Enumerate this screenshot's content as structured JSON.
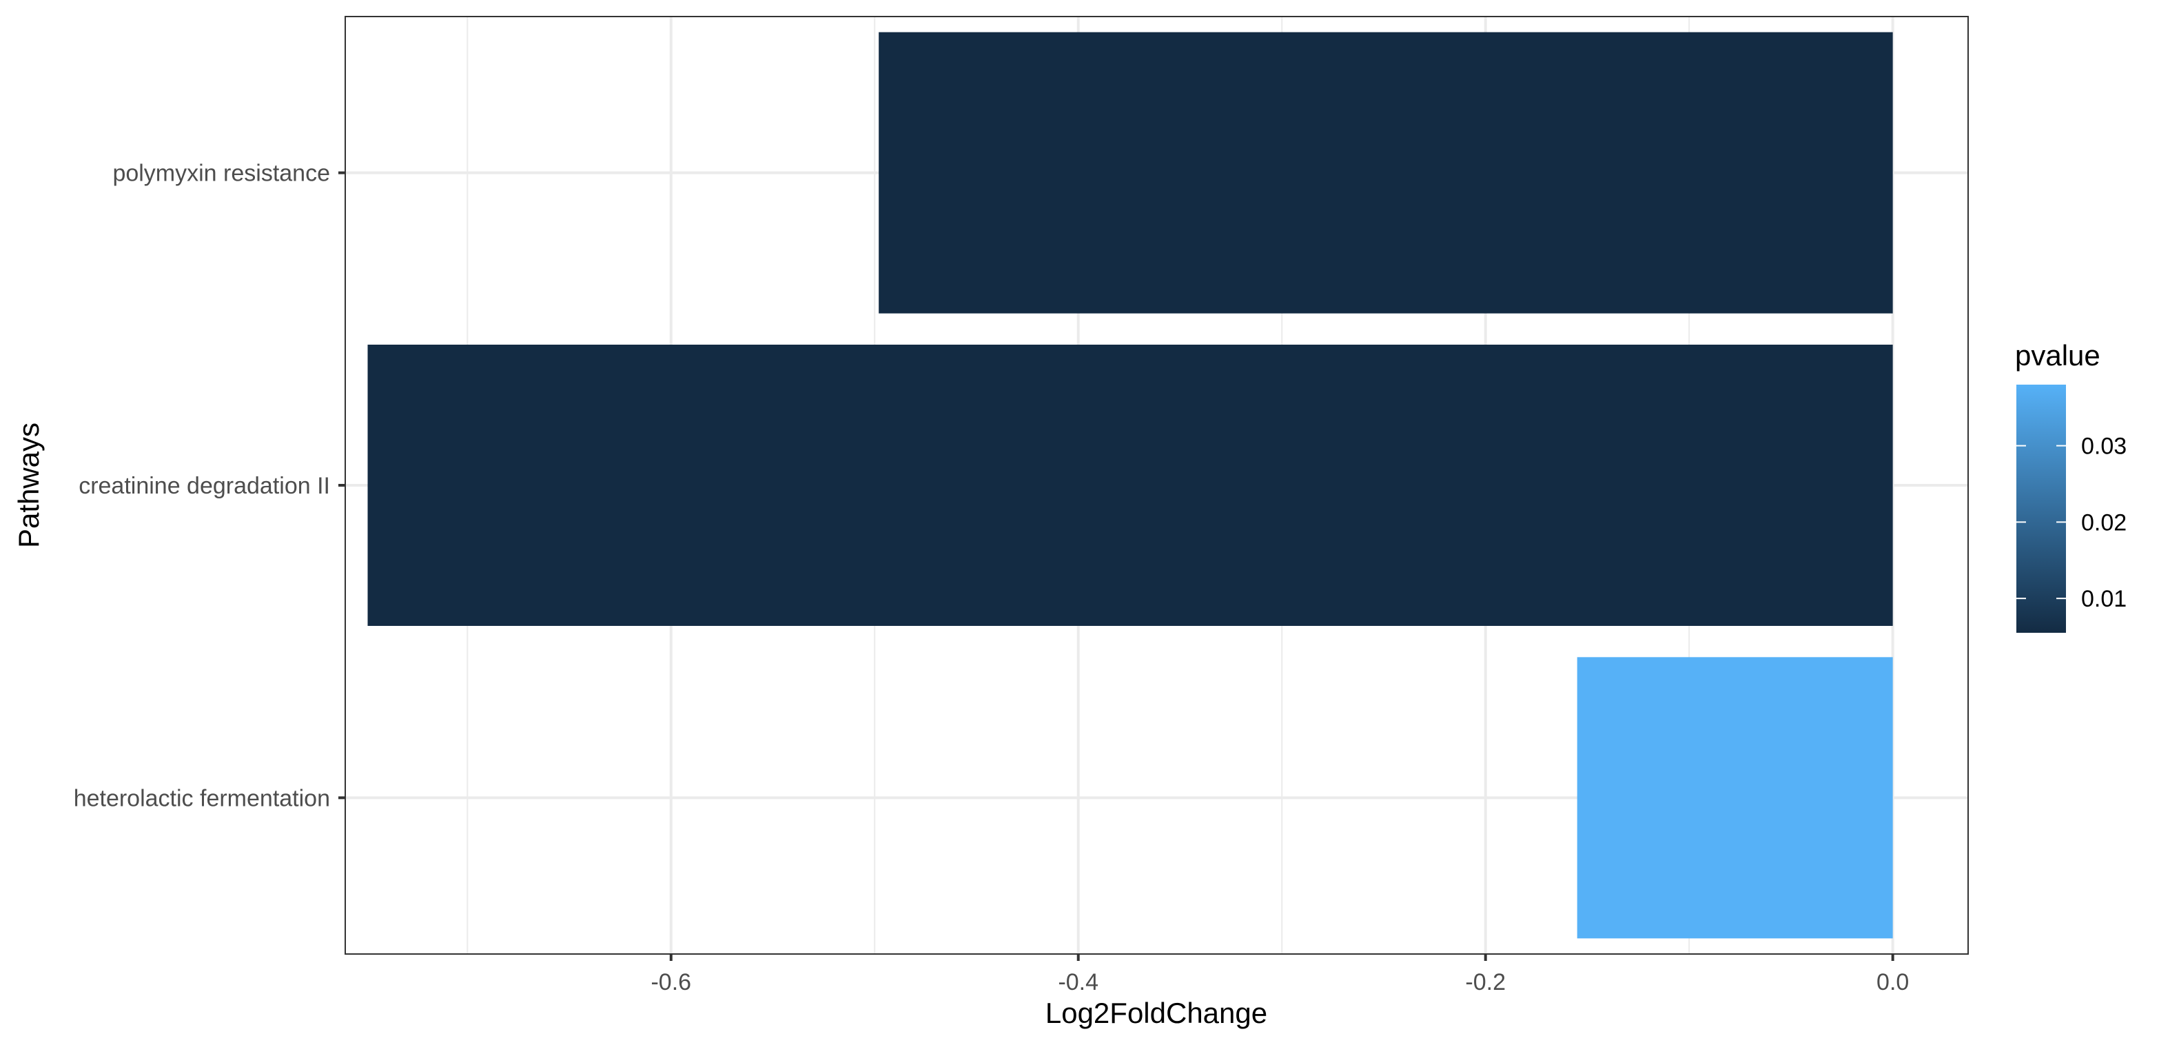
{
  "chart_data": {
    "type": "bar",
    "orientation": "horizontal",
    "title": "",
    "xlabel": "Log2FoldChange",
    "ylabel": "Pathways",
    "xlim": [
      -0.76,
      0.037
    ],
    "x_ticks": [
      -0.6,
      -0.4,
      -0.2,
      0.0
    ],
    "x_tick_labels": [
      "-0.6",
      "-0.4",
      "-0.2",
      "0.0"
    ],
    "categories": [
      "polymyxin resistance",
      "creatinine degradation II",
      "heterolactic fermentation"
    ],
    "values": [
      -0.498,
      -0.749,
      -0.155
    ],
    "pvalues": [
      0.0055,
      0.0055,
      0.038
    ],
    "grid": true,
    "legend": {
      "title": "pvalue",
      "placement": "right",
      "type": "colorbar",
      "range": [
        0.0055,
        0.038
      ],
      "ticks": [
        0.01,
        0.02,
        0.03
      ],
      "tick_labels": [
        "0.01",
        "0.02",
        "0.03"
      ],
      "color_low": "#132B43",
      "color_high": "#56B1F7"
    }
  }
}
